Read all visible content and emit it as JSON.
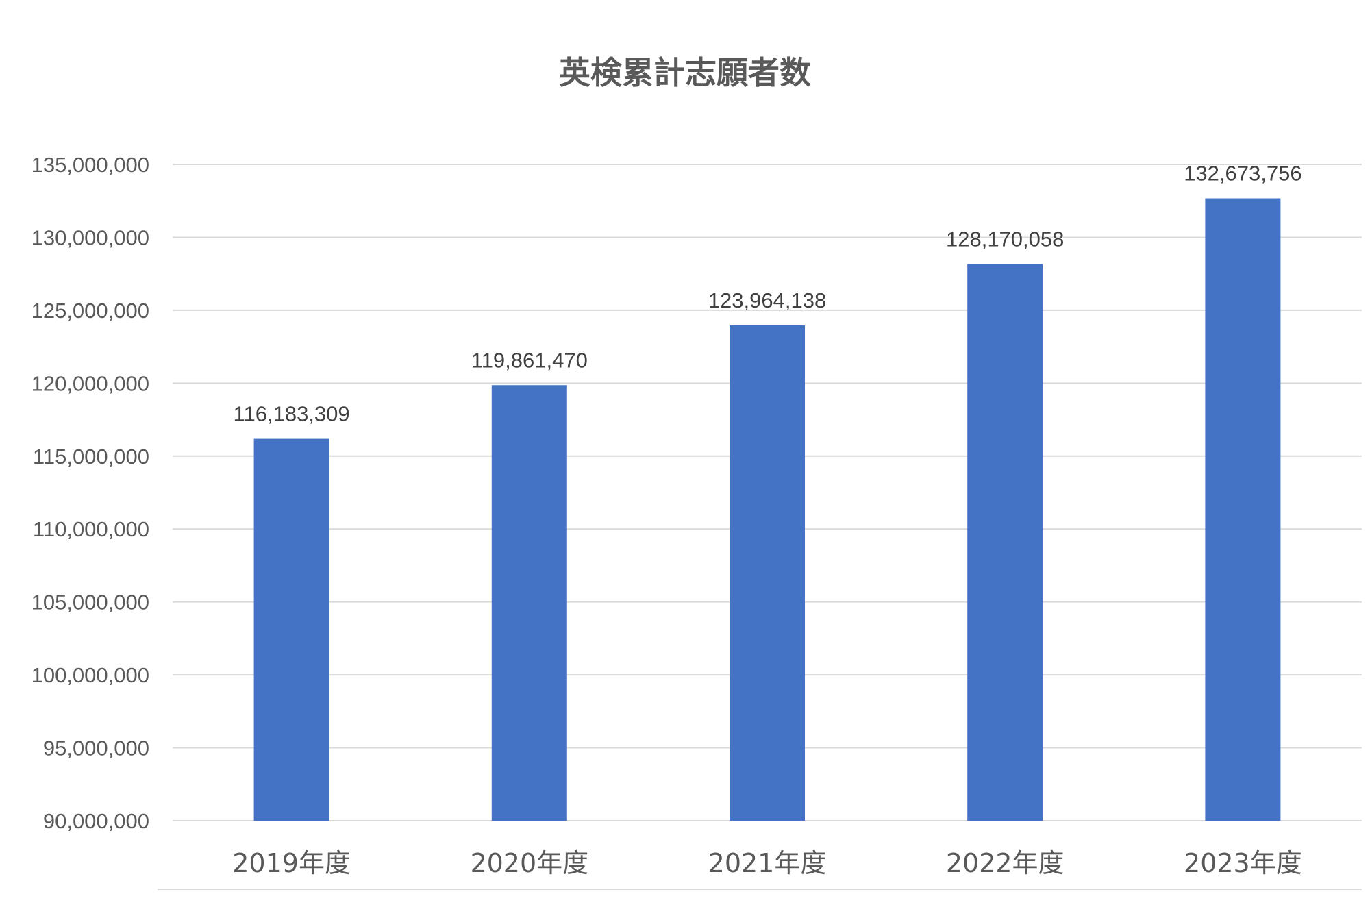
{
  "chart_data": {
    "type": "bar",
    "title": "英検累計志願者数",
    "categories": [
      "2019年度",
      "2020年度",
      "2021年度",
      "2022年度",
      "2023年度"
    ],
    "values": [
      116183309,
      119861470,
      123964138,
      128170058,
      132673756
    ],
    "value_labels": [
      "116,183,309",
      "119,861,470",
      "123,964,138",
      "128,170,058",
      "132,673,756"
    ],
    "ylim": [
      90000000,
      135000000
    ],
    "yticks": [
      90000000,
      95000000,
      100000000,
      105000000,
      110000000,
      115000000,
      120000000,
      125000000,
      130000000,
      135000000
    ],
    "ytick_labels": [
      "90,000,000",
      "95,000,000",
      "100,000,000",
      "105,000,000",
      "110,000,000",
      "115,000,000",
      "120,000,000",
      "125,000,000",
      "130,000,000",
      "135,000,000"
    ],
    "grid": true,
    "legend": "none",
    "bar_color": "#4472C4",
    "grid_color": "#D9D9D9"
  }
}
